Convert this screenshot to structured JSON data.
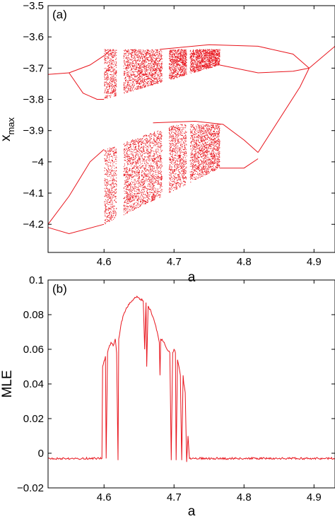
{
  "chart_data": [
    {
      "type": "scatter",
      "panel_label": "(a)",
      "title": "",
      "xlabel": "a",
      "ylabel": "x",
      "ylabel_subscript": "max",
      "xlim": [
        4.52,
        4.93
      ],
      "ylim": [
        -4.29,
        -3.5
      ],
      "xticks": [
        4.6,
        4.7,
        4.8,
        4.9
      ],
      "xtick_labels": [
        "4.6",
        "4.7",
        "4.8",
        "4.9"
      ],
      "yticks": [
        -4.2,
        -4.1,
        -4.0,
        -3.9,
        -3.8,
        -3.7,
        -3.6,
        -3.5
      ],
      "ytick_labels": [
        "−4.2",
        "−4.1",
        "−4",
        "−3.9",
        "−3.8",
        "−3.7",
        "−3.6",
        "−3.5"
      ],
      "grid": false,
      "color": "#e8141c",
      "series": [
        {
          "values_description": "bifurcation diagram of local maxima",
          "upper_branch": {
            "period1": [
              [
                4.52,
                -3.72
              ],
              [
                4.55,
                -3.715
              ]
            ],
            "periodic_upper": [
              [
                4.55,
                -3.715
              ],
              [
                4.58,
                -3.69
              ],
              [
                4.6,
                -3.66
              ],
              [
                4.61,
                -3.64
              ]
            ],
            "periodic_lower": [
              [
                4.55,
                -3.715
              ],
              [
                4.57,
                -3.78
              ],
              [
                4.59,
                -3.8
              ],
              [
                4.6,
                -3.8
              ]
            ],
            "chaotic_band": {
              "x": [
                4.6,
                4.765
              ],
              "top": -3.64,
              "bottom_start": -3.8,
              "bottom_end": -3.69
            },
            "outer_top": [
              [
                4.68,
                -3.64
              ],
              [
                4.75,
                -3.625
              ],
              [
                4.82,
                -3.63
              ],
              [
                4.87,
                -3.655
              ],
              [
                4.893,
                -3.7
              ]
            ],
            "outer_bottom": [
              [
                4.765,
                -3.69
              ],
              [
                4.82,
                -3.715
              ],
              [
                4.87,
                -3.71
              ],
              [
                4.893,
                -3.7
              ]
            ],
            "tail": [
              [
                4.893,
                -3.7
              ],
              [
                4.93,
                -3.63
              ]
            ]
          },
          "lower_branch": {
            "left_top": [
              [
                4.52,
                -4.2
              ],
              [
                4.55,
                -4.11
              ],
              [
                4.58,
                -4.0
              ],
              [
                4.6,
                -3.96
              ]
            ],
            "left_bottom": [
              [
                4.52,
                -4.21
              ],
              [
                4.55,
                -4.23
              ],
              [
                4.6,
                -4.2
              ]
            ],
            "chaotic_band": {
              "x": [
                4.6,
                4.765
              ],
              "top_start": -3.96,
              "top_end": -3.88,
              "bottom_start": -4.2,
              "bottom_end": -4.02
            },
            "outer_top": [
              [
                4.67,
                -3.875
              ],
              [
                4.73,
                -3.87
              ],
              [
                4.77,
                -3.88
              ],
              [
                4.8,
                -3.93
              ],
              [
                4.82,
                -3.97
              ]
            ],
            "outer_bottom": [
              [
                4.765,
                -4.02
              ],
              [
                4.8,
                -4.02
              ],
              [
                4.82,
                -3.99
              ]
            ],
            "tail": [
              [
                4.82,
                -3.97
              ],
              [
                4.88,
                -3.76
              ],
              [
                4.893,
                -3.7
              ]
            ]
          },
          "windows": [
            4.62,
            4.625,
            4.685,
            4.69,
            4.72
          ]
        }
      ]
    },
    {
      "type": "line",
      "panel_label": "(b)",
      "title": "",
      "xlabel": "a",
      "ylabel": "MLE",
      "xlim": [
        4.52,
        4.93
      ],
      "ylim": [
        -0.02,
        0.1
      ],
      "xticks": [
        4.6,
        4.7,
        4.8,
        4.9
      ],
      "xtick_labels": [
        "4.6",
        "4.7",
        "4.8",
        "4.9"
      ],
      "yticks": [
        -0.02,
        0,
        0.02,
        0.04,
        0.06,
        0.08,
        0.1
      ],
      "ytick_labels": [
        "−0.02",
        "0",
        "0.02",
        "0.04",
        "0.06",
        "0.08",
        "0.1"
      ],
      "grid": false,
      "color": "#e8141c",
      "series": [
        {
          "x": [
            4.52,
            4.56,
            4.597,
            4.598,
            4.602,
            4.603,
            4.605,
            4.606,
            4.61,
            4.613,
            4.616,
            4.618,
            4.62,
            4.621,
            4.625,
            4.628,
            4.632,
            4.636,
            4.64,
            4.644,
            4.648,
            4.652,
            4.656,
            4.658,
            4.66,
            4.661,
            4.663,
            4.667,
            4.672,
            4.676,
            4.679,
            4.68,
            4.681,
            4.686,
            4.69,
            4.694,
            4.696,
            4.698,
            4.7,
            4.702,
            4.703,
            4.705,
            4.707,
            4.709,
            4.711,
            4.713,
            4.714,
            4.716,
            4.718,
            4.72,
            4.722,
            4.76,
            4.8,
            4.85,
            4.93
          ],
          "y": [
            -0.003,
            -0.003,
            -0.003,
            0.05,
            0.056,
            -0.003,
            0.058,
            0.06,
            0.064,
            0.062,
            0.066,
            0.058,
            -0.004,
            0.066,
            0.076,
            0.08,
            0.084,
            0.086,
            0.088,
            0.09,
            0.09,
            0.089,
            0.088,
            0.06,
            0.087,
            0.05,
            0.085,
            0.082,
            0.076,
            0.07,
            0.064,
            0.045,
            0.066,
            0.064,
            0.06,
            0.058,
            -0.004,
            0.058,
            0.06,
            0.058,
            -0.004,
            0.054,
            0.05,
            0.045,
            -0.004,
            0.045,
            0.04,
            0.035,
            -0.005,
            0.01,
            -0.003,
            -0.003,
            -0.003,
            -0.003,
            -0.003
          ]
        }
      ]
    }
  ]
}
